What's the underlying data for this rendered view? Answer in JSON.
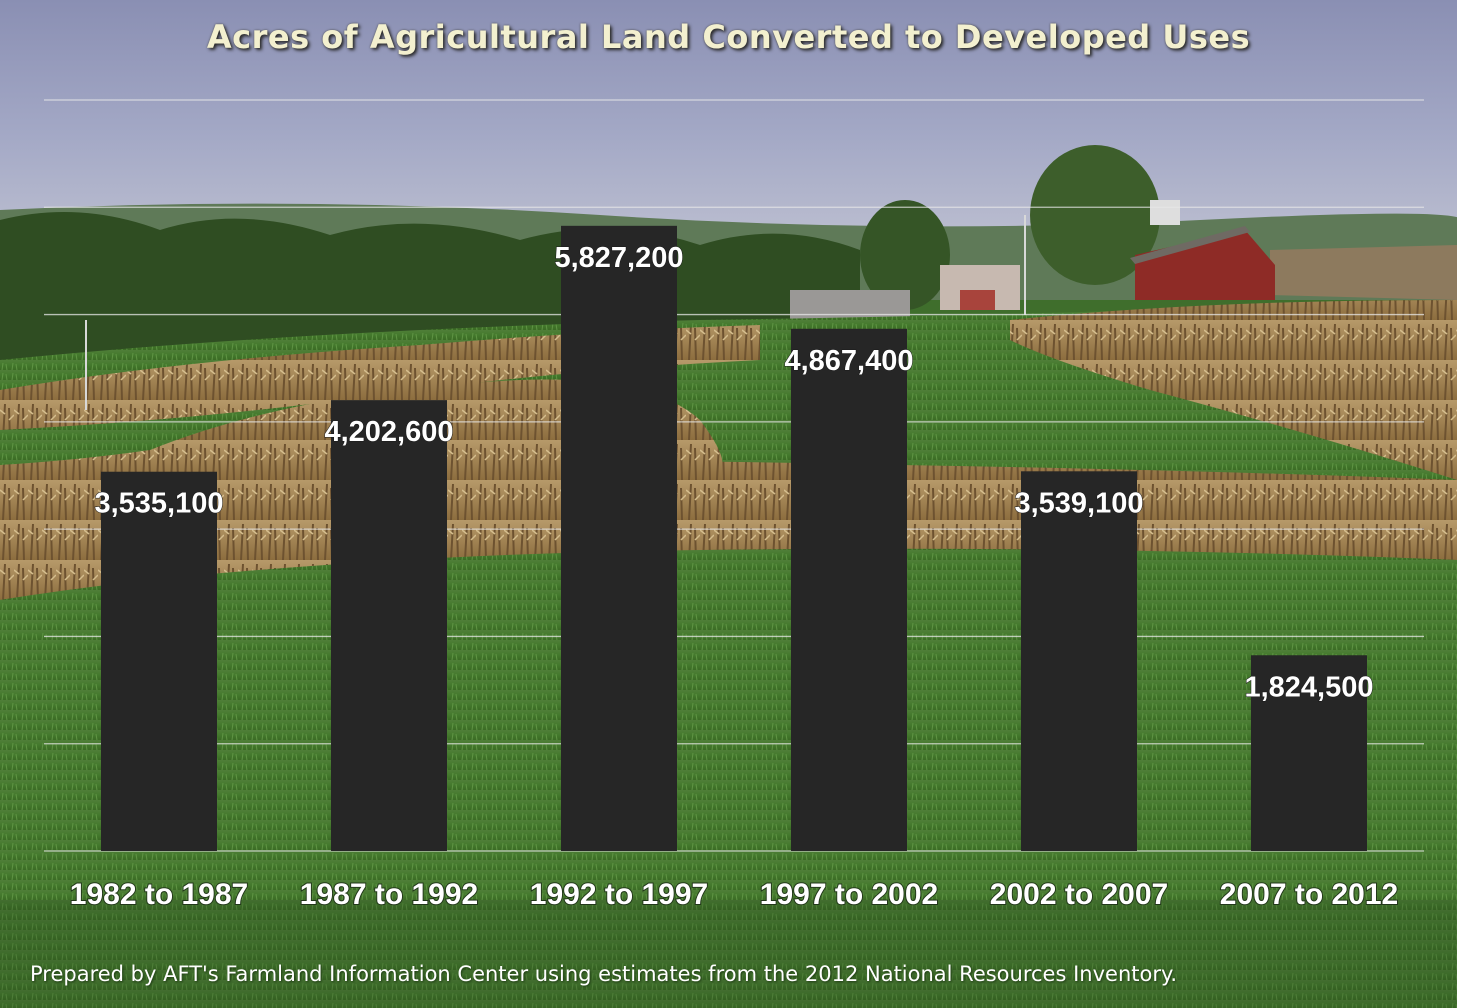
{
  "source_note": "Prepared by AFT's Farmland Information Center using estimates from the 2012 National Resources Inventory.",
  "colors": {
    "bar": "#262626",
    "title": "#f3f0cf",
    "labels": "#ffffff",
    "gridlines": "#e8e8e8"
  },
  "chart_data": {
    "type": "bar",
    "title": "Acres of Agricultural Land Converted to Developed Uses",
    "xlabel": "",
    "ylabel": "",
    "categories": [
      "1982 to 1987",
      "1987 to 1992",
      "1992 to 1997",
      "1997 to 2002",
      "2002 to 2007",
      "2007 to 2012"
    ],
    "values": [
      3535100,
      4202600,
      5827200,
      4867400,
      3539100,
      1824500
    ],
    "data_labels": [
      "3,535,100",
      "4,202,600",
      "5,827,200",
      "4,867,400",
      "3,539,100",
      "1,824,500"
    ],
    "ylim": [
      0,
      7000000
    ],
    "gridlines": true,
    "gridline_step": 1000000,
    "legend": "none",
    "y_tick_labels_shown": false
  }
}
